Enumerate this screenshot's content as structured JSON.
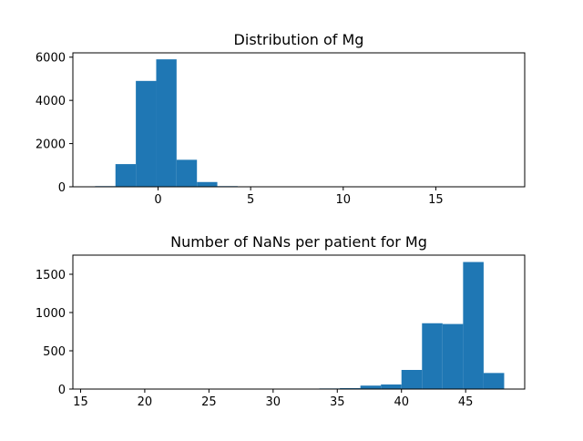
{
  "colors": {
    "bar": "#1f77b4",
    "axis": "#000000",
    "background": "#ffffff"
  },
  "chart_data": [
    {
      "type": "bar",
      "title": "Distribution of Mg",
      "xlabel": "",
      "ylabel": "",
      "grid": false,
      "xlim": [
        -4.6,
        19.8
      ],
      "ylim": [
        0,
        6200
      ],
      "xticks": [
        0,
        5,
        10,
        15
      ],
      "yticks": [
        0,
        2000,
        4000,
        6000
      ],
      "bins": [
        {
          "x0": -3.4,
          "x1": -2.3,
          "value": 30
        },
        {
          "x0": -2.3,
          "x1": -1.2,
          "value": 1050
        },
        {
          "x0": -1.2,
          "x1": -0.1,
          "value": 4900
        },
        {
          "x0": -0.1,
          "x1": 1.0,
          "value": 5900
        },
        {
          "x0": 1.0,
          "x1": 2.1,
          "value": 1250
        },
        {
          "x0": 2.1,
          "x1": 3.2,
          "value": 220
        },
        {
          "x0": 3.2,
          "x1": 4.3,
          "value": 30
        },
        {
          "x0": 4.3,
          "x1": 5.4,
          "value": 5
        }
      ]
    },
    {
      "type": "bar",
      "title": "Number of NaNs per patient for Mg",
      "xlabel": "",
      "ylabel": "",
      "grid": false,
      "xlim": [
        14.4,
        49.6
      ],
      "ylim": [
        0,
        1750
      ],
      "xticks": [
        15,
        20,
        25,
        30,
        35,
        40,
        45
      ],
      "yticks": [
        0,
        500,
        1000,
        1500
      ],
      "bins": [
        {
          "x0": 32.0,
          "x1": 33.6,
          "value": 3
        },
        {
          "x0": 33.6,
          "x1": 35.2,
          "value": 8
        },
        {
          "x0": 35.2,
          "x1": 36.8,
          "value": 12
        },
        {
          "x0": 36.8,
          "x1": 38.4,
          "value": 45
        },
        {
          "x0": 38.4,
          "x1": 40.0,
          "value": 60
        },
        {
          "x0": 40.0,
          "x1": 41.6,
          "value": 250
        },
        {
          "x0": 41.6,
          "x1": 43.2,
          "value": 860
        },
        {
          "x0": 43.2,
          "x1": 44.8,
          "value": 850
        },
        {
          "x0": 44.8,
          "x1": 46.4,
          "value": 1660
        },
        {
          "x0": 46.4,
          "x1": 48.0,
          "value": 210
        }
      ]
    }
  ]
}
